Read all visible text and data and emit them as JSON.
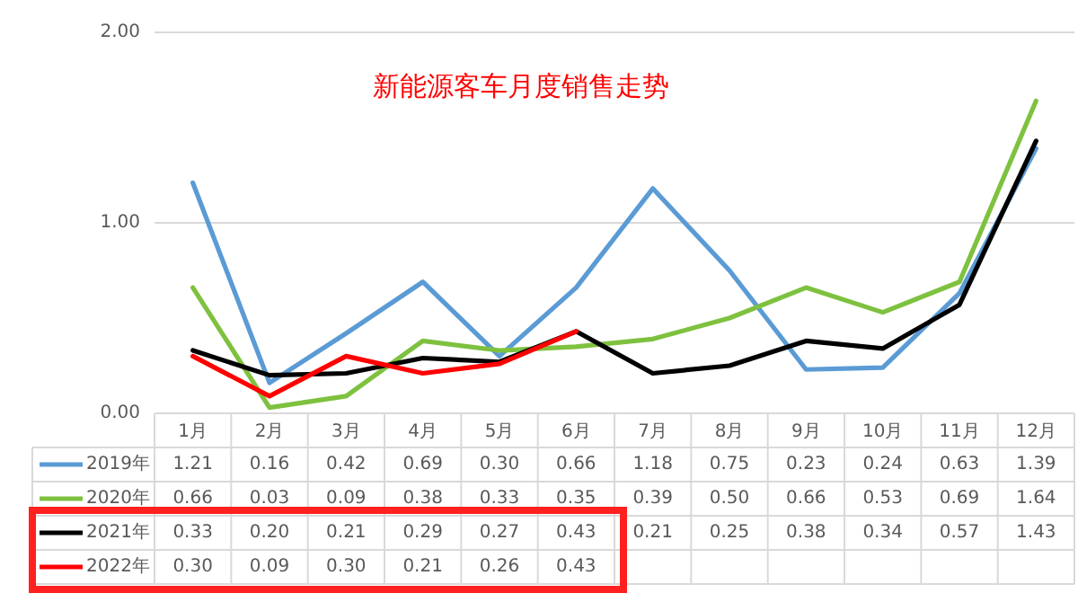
{
  "chart_data": {
    "type": "line",
    "title": "新能源客车月度销售走势",
    "categories": [
      "1月",
      "2月",
      "3月",
      "4月",
      "5月",
      "6月",
      "7月",
      "8月",
      "9月",
      "10月",
      "11月",
      "12月"
    ],
    "series": [
      {
        "name": "2019年",
        "color": "#5b9bd5",
        "values": [
          1.21,
          0.16,
          0.42,
          0.69,
          0.3,
          0.66,
          1.18,
          0.75,
          0.23,
          0.24,
          0.63,
          1.39
        ],
        "value_labels": [
          "1.21",
          "0.16",
          "0.42",
          "0.69",
          "0.30",
          "0.66",
          "1.18",
          "0.75",
          "0.23",
          "0.24",
          "0.63",
          "1.39"
        ]
      },
      {
        "name": "2020年",
        "color": "#7ec13f",
        "values": [
          0.66,
          0.03,
          0.09,
          0.38,
          0.33,
          0.35,
          0.39,
          0.5,
          0.66,
          0.53,
          0.69,
          1.64
        ],
        "value_labels": [
          "0.66",
          "0.03",
          "0.09",
          "0.38",
          "0.33",
          "0.35",
          "0.39",
          "0.50",
          "0.66",
          "0.53",
          "0.69",
          "1.64"
        ]
      },
      {
        "name": "2021年",
        "color": "#000000",
        "values": [
          0.33,
          0.2,
          0.21,
          0.29,
          0.27,
          0.43,
          0.21,
          0.25,
          0.38,
          0.34,
          0.57,
          1.43
        ],
        "value_labels": [
          "0.33",
          "0.20",
          "0.21",
          "0.29",
          "0.27",
          "0.43",
          "0.21",
          "0.25",
          "0.38",
          "0.34",
          "0.57",
          "1.43"
        ]
      },
      {
        "name": "2022年",
        "color": "#ff0000",
        "values": [
          0.3,
          0.09,
          0.3,
          0.21,
          0.26,
          0.43,
          null,
          null,
          null,
          null,
          null,
          null
        ],
        "value_labels": [
          "0.30",
          "0.09",
          "0.30",
          "0.21",
          "0.26",
          "0.43",
          null,
          null,
          null,
          null,
          null,
          null
        ]
      }
    ],
    "ylim": [
      0,
      2
    ],
    "yticks": [
      {
        "value": 0,
        "label": "0.00"
      },
      {
        "value": 1,
        "label": "1.00"
      },
      {
        "value": 2,
        "label": "2.00"
      }
    ],
    "grid": "y",
    "legend": "bottom",
    "marker": "none",
    "line_style": "solid"
  }
}
